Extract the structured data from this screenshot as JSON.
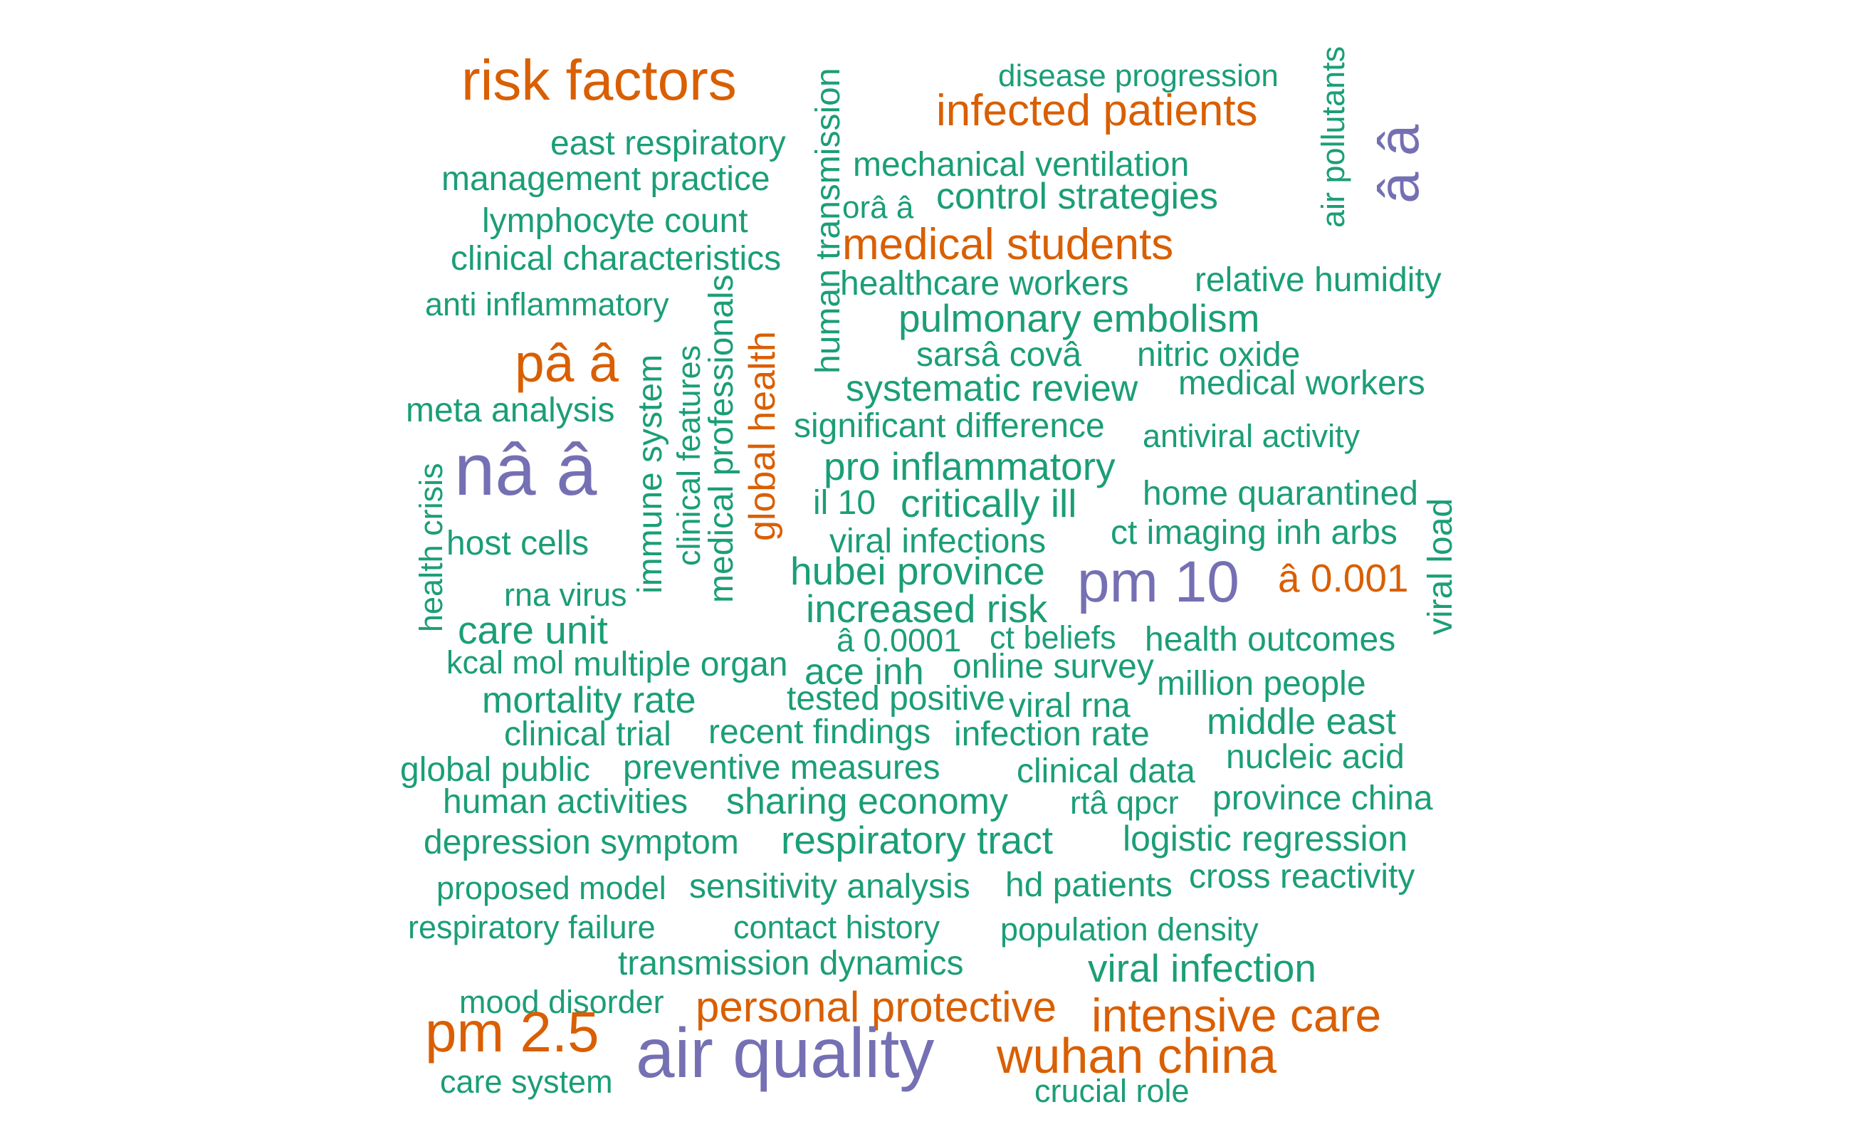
{
  "palette": {
    "green": "#1b9e77",
    "orange": "#d95f02",
    "purple": "#7570b3"
  },
  "words": [
    {
      "text": "risk factors",
      "color": "orange"
    },
    {
      "text": "disease progression",
      "color": "green"
    },
    {
      "text": "infected patients",
      "color": "orange"
    },
    {
      "text": "east respiratory",
      "color": "green"
    },
    {
      "text": "management practice",
      "color": "green"
    },
    {
      "text": "mechanical ventilation",
      "color": "green"
    },
    {
      "text": "control strategies",
      "color": "green"
    },
    {
      "text": "orâ â",
      "color": "green"
    },
    {
      "text": "lymphocyte count",
      "color": "green"
    },
    {
      "text": "clinical characteristics",
      "color": "green"
    },
    {
      "text": "medical students",
      "color": "orange"
    },
    {
      "text": "healthcare workers",
      "color": "green"
    },
    {
      "text": "relative humidity",
      "color": "green"
    },
    {
      "text": "anti inflammatory",
      "color": "green"
    },
    {
      "text": "pulmonary embolism",
      "color": "green"
    },
    {
      "text": "pâ â",
      "color": "orange"
    },
    {
      "text": "sarsâ covâ",
      "color": "green"
    },
    {
      "text": "nitric oxide",
      "color": "green"
    },
    {
      "text": "systematic review",
      "color": "green"
    },
    {
      "text": "medical workers",
      "color": "green"
    },
    {
      "text": "meta analysis",
      "color": "green"
    },
    {
      "text": "significant difference",
      "color": "green"
    },
    {
      "text": "antiviral activity",
      "color": "green"
    },
    {
      "text": "nâ â",
      "color": "purple"
    },
    {
      "text": "pro inflammatory",
      "color": "green"
    },
    {
      "text": "home quarantined",
      "color": "green"
    },
    {
      "text": "il 10",
      "color": "green"
    },
    {
      "text": "critically ill",
      "color": "green"
    },
    {
      "text": "host cells",
      "color": "green"
    },
    {
      "text": "ct imaging inh arbs",
      "color": "green"
    },
    {
      "text": "viral infections",
      "color": "green"
    },
    {
      "text": "hubei province",
      "color": "green"
    },
    {
      "text": "pm 10",
      "color": "purple"
    },
    {
      "text": "â 0.001",
      "color": "orange"
    },
    {
      "text": "rna virus",
      "color": "green"
    },
    {
      "text": "increased risk",
      "color": "green"
    },
    {
      "text": "care unit",
      "color": "green"
    },
    {
      "text": "â 0.0001",
      "color": "green"
    },
    {
      "text": "ct beliefs",
      "color": "green"
    },
    {
      "text": "health outcomes",
      "color": "green"
    },
    {
      "text": "kcal mol",
      "color": "green"
    },
    {
      "text": "multiple organ",
      "color": "green"
    },
    {
      "text": "ace inh",
      "color": "green"
    },
    {
      "text": "online survey",
      "color": "green"
    },
    {
      "text": "million people",
      "color": "green"
    },
    {
      "text": "mortality rate",
      "color": "green"
    },
    {
      "text": "tested positive",
      "color": "green"
    },
    {
      "text": "viral rna",
      "color": "green"
    },
    {
      "text": "middle east",
      "color": "green"
    },
    {
      "text": "clinical trial",
      "color": "green"
    },
    {
      "text": "recent findings",
      "color": "green"
    },
    {
      "text": "infection rate",
      "color": "green"
    },
    {
      "text": "nucleic acid",
      "color": "green"
    },
    {
      "text": "global public",
      "color": "green"
    },
    {
      "text": "preventive measures",
      "color": "green"
    },
    {
      "text": "clinical data",
      "color": "green"
    },
    {
      "text": "human activities",
      "color": "green"
    },
    {
      "text": "sharing economy",
      "color": "green"
    },
    {
      "text": "rtâ qpcr",
      "color": "green"
    },
    {
      "text": "province china",
      "color": "green"
    },
    {
      "text": "depression symptom",
      "color": "green"
    },
    {
      "text": "respiratory tract",
      "color": "green"
    },
    {
      "text": "logistic regression",
      "color": "green"
    },
    {
      "text": "proposed model",
      "color": "green"
    },
    {
      "text": "sensitivity analysis",
      "color": "green"
    },
    {
      "text": "hd patients",
      "color": "green"
    },
    {
      "text": "cross reactivity",
      "color": "green"
    },
    {
      "text": "respiratory failure",
      "color": "green"
    },
    {
      "text": "contact history",
      "color": "green"
    },
    {
      "text": "population density",
      "color": "green"
    },
    {
      "text": "transmission dynamics",
      "color": "green"
    },
    {
      "text": "viral infection",
      "color": "green"
    },
    {
      "text": "mood disorder",
      "color": "green"
    },
    {
      "text": "personal protective",
      "color": "orange"
    },
    {
      "text": "intensive care",
      "color": "orange"
    },
    {
      "text": "pm 2.5",
      "color": "orange"
    },
    {
      "text": "air quality",
      "color": "purple"
    },
    {
      "text": "wuhan china",
      "color": "orange"
    },
    {
      "text": "care system",
      "color": "green"
    },
    {
      "text": "crucial role",
      "color": "green"
    },
    {
      "text": "human transmission",
      "color": "green"
    },
    {
      "text": "air pollutants",
      "color": "green"
    },
    {
      "text": "â â",
      "color": "purple"
    },
    {
      "text": "global health",
      "color": "orange"
    },
    {
      "text": "medical professionals",
      "color": "green"
    },
    {
      "text": "clinical features",
      "color": "green"
    },
    {
      "text": "immune system",
      "color": "green"
    },
    {
      "text": "health crisis",
      "color": "green"
    },
    {
      "text": "viral load",
      "color": "green"
    }
  ]
}
